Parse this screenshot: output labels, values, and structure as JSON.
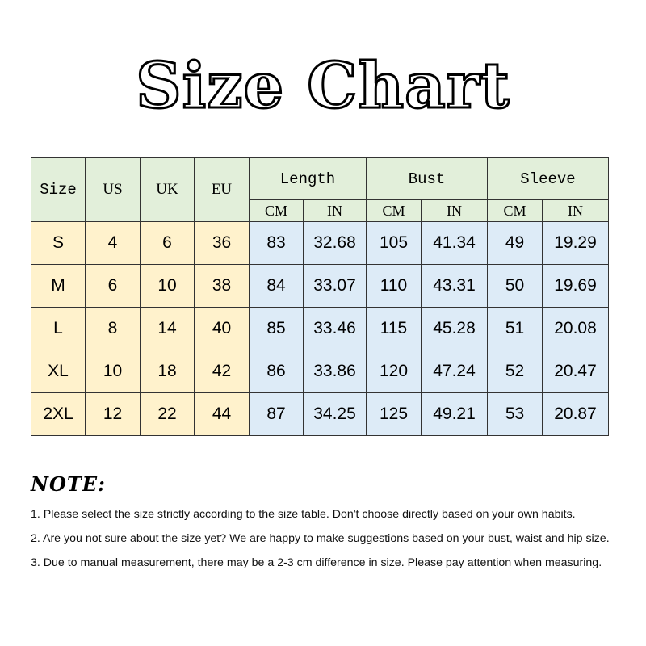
{
  "title": "Size Chart",
  "table": {
    "headers": [
      "Size",
      "US",
      "UK",
      "EU"
    ],
    "groups": [
      "Length",
      "Bust",
      "Sleeve"
    ],
    "units": [
      "CM",
      "IN"
    ],
    "rows": [
      [
        "S",
        "4",
        "6",
        "36",
        "83",
        "32.68",
        "105",
        "41.34",
        "49",
        "19.29"
      ],
      [
        "M",
        "6",
        "10",
        "38",
        "84",
        "33.07",
        "110",
        "43.31",
        "50",
        "19.69"
      ],
      [
        "L",
        "8",
        "14",
        "40",
        "85",
        "33.46",
        "115",
        "45.28",
        "51",
        "20.08"
      ],
      [
        "XL",
        "10",
        "18",
        "42",
        "86",
        "33.86",
        "120",
        "47.24",
        "52",
        "20.47"
      ],
      [
        "2XL",
        "12",
        "22",
        "44",
        "87",
        "34.25",
        "125",
        "49.21",
        "53",
        "20.87"
      ]
    ]
  },
  "colors": {
    "header": "#e2efda",
    "size_cols": "#fff2cc",
    "measure_cols": "#ddebf7"
  },
  "note": {
    "heading": "NOTE:",
    "items": [
      "1. Please select the size strictly according to the size table. Don't choose directly based on your own habits.",
      "2. Are you not sure about the size yet? We are happy to make suggestions based on your bust, waist and hip size.",
      "3. Due to manual measurement, there may be a 2-3 cm difference in size. Please pay attention when measuring."
    ]
  }
}
